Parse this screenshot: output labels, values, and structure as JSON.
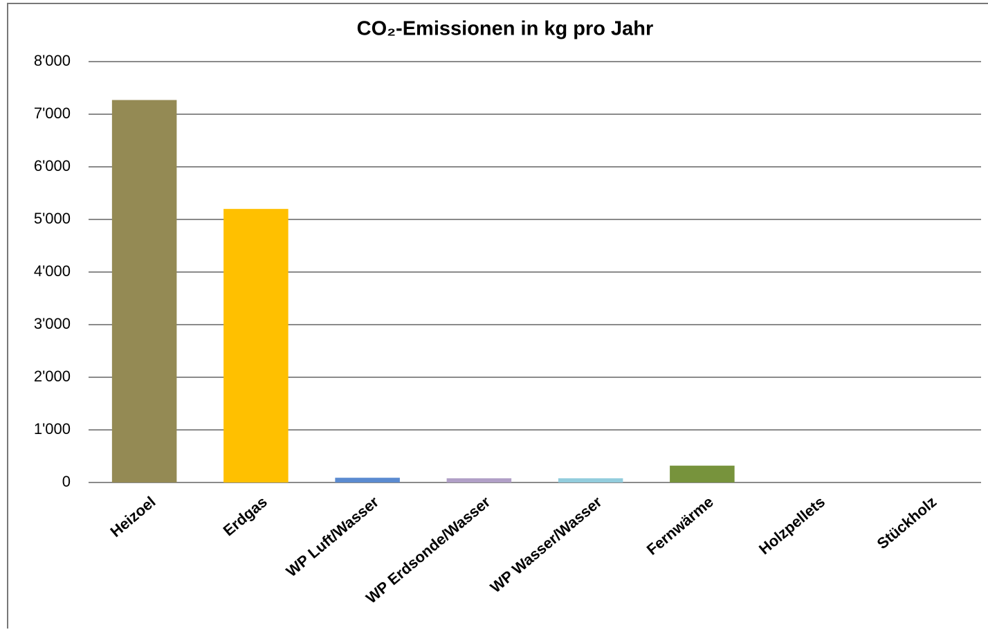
{
  "chart_data": {
    "type": "bar",
    "title": "CO₂-Emissionen in kg pro Jahr",
    "categories": [
      "Heizoel",
      "Erdgas",
      "WP Luft/Wasser",
      "WP Erdsonde/Wasser",
      "WP Wasser/Wasser",
      "Fernwärme",
      "Holzpellets",
      "Stückholz"
    ],
    "values": [
      7270,
      5200,
      90,
      80,
      80,
      320,
      0,
      0
    ],
    "colors": [
      "#948a54",
      "#ffc000",
      "#5b8bd0",
      "#b1a0c7",
      "#93cddd",
      "#77933c",
      "#4f81bd",
      "#4f81bd"
    ],
    "ylim": [
      0,
      8000
    ],
    "yticks": [
      0,
      {
        "value": 1000,
        "label": "1'000"
      },
      {
        "value": 2000,
        "label": "2'000"
      },
      {
        "value": 3000,
        "label": "3'000"
      },
      {
        "value": 4000,
        "label": "4'000"
      },
      {
        "value": 5000,
        "label": "5'000"
      },
      {
        "value": 6000,
        "label": "6'000"
      },
      {
        "value": 7000,
        "label": "7'000"
      },
      {
        "value": 8000,
        "label": "8'000"
      }
    ],
    "grid": true
  }
}
